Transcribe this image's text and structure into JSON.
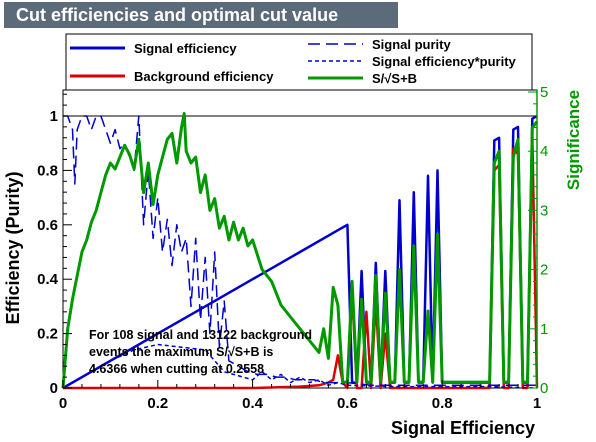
{
  "chart_data": {
    "type": "line",
    "title": "Cut efficiencies and optimal cut value",
    "xlabel": "Signal Efficiency",
    "ylabel": "Efficiency (Purity)",
    "y2label": "Significance",
    "xlim": [
      0,
      1
    ],
    "ylim": [
      0,
      1.1
    ],
    "y2lim": [
      0,
      5
    ],
    "xticks": [
      "0",
      "0.2",
      "0.4",
      "0.6",
      "0.8",
      "1"
    ],
    "yticks": [
      "0",
      "0.2",
      "0.4",
      "0.6",
      "0.8",
      "1"
    ],
    "y2ticks": [
      "0",
      "1",
      "2",
      "3",
      "4",
      "5"
    ],
    "legend_placement": "top",
    "annotation": [
      "For 108 signal and 13122 background",
      "events the maximum S/√S+B is",
      "4.6366 when cutting at 0.2558"
    ],
    "colors": {
      "signal": "#0000cc",
      "background": "#dd0000",
      "significance": "#009900",
      "axis": "#000000",
      "title_bg": "#5c6b7a"
    },
    "series": [
      {
        "name": "Signal efficiency",
        "axis": "left",
        "style": "solid",
        "x": [
          0.0,
          0.1,
          0.2,
          0.3,
          0.4,
          0.5,
          0.58,
          0.59,
          0.6,
          0.61,
          0.62,
          0.63,
          0.64,
          0.65,
          0.66,
          0.67,
          0.68,
          0.69,
          0.7,
          0.71,
          0.72,
          0.73,
          0.74,
          0.75,
          0.76,
          0.77,
          0.78,
          0.79,
          0.8,
          0.81,
          0.82,
          0.83,
          0.84,
          0.85,
          0.86,
          0.87,
          0.88,
          0.89,
          0.9,
          0.91,
          0.92,
          0.93,
          0.94,
          0.95,
          0.96,
          0.97,
          0.98,
          0.99,
          1.0
        ],
        "y": [
          0.0,
          0.1,
          0.2,
          0.3,
          0.4,
          0.5,
          0.58,
          0.59,
          0.6,
          0.02,
          0.02,
          0.43,
          0.02,
          0.02,
          0.46,
          0.02,
          0.43,
          0.02,
          0.02,
          0.69,
          0.02,
          0.02,
          0.72,
          0.02,
          0.02,
          0.78,
          0.02,
          0.8,
          0.02,
          0.02,
          0.02,
          0.02,
          0.02,
          0.02,
          0.02,
          0.02,
          0.02,
          0.02,
          0.02,
          0.91,
          0.92,
          0.02,
          0.02,
          0.95,
          0.96,
          0.02,
          0.02,
          0.99,
          1.0
        ]
      },
      {
        "name": "Background efficiency",
        "axis": "left",
        "style": "solid",
        "x": [
          0.0,
          0.3,
          0.4,
          0.5,
          0.54,
          0.56,
          0.57,
          0.58,
          0.59,
          0.6,
          0.61,
          0.62,
          0.63,
          0.64,
          0.65,
          0.66,
          0.67,
          0.68,
          0.69,
          0.7,
          0.72,
          0.74,
          0.76,
          0.78,
          0.8,
          0.85,
          0.9,
          0.91,
          0.92,
          0.93,
          0.94,
          0.95,
          0.96,
          0.97,
          0.98,
          0.99,
          1.0
        ],
        "y": [
          0.0,
          0.0,
          0.0,
          0.005,
          0.01,
          0.02,
          0.03,
          0.12,
          0.02,
          0.0,
          0.35,
          0.0,
          0.0,
          0.28,
          0.0,
          0.32,
          0.0,
          0.2,
          0.0,
          0.0,
          0.0,
          0.0,
          0.0,
          0.0,
          0.0,
          0.0,
          0.0,
          0.8,
          0.82,
          0.0,
          0.0,
          0.88,
          0.86,
          0.0,
          0.0,
          0.93,
          0.0
        ]
      },
      {
        "name": "Signal purity",
        "axis": "left",
        "style": "longdash",
        "x": [
          0.0,
          0.01,
          0.02,
          0.025,
          0.03,
          0.04,
          0.05,
          0.06,
          0.07,
          0.08,
          0.09,
          0.1,
          0.11,
          0.12,
          0.13,
          0.14,
          0.15,
          0.16,
          0.17,
          0.18,
          0.19,
          0.2,
          0.21,
          0.22,
          0.23,
          0.24,
          0.25,
          0.26,
          0.27,
          0.28,
          0.29,
          0.3,
          0.31,
          0.32,
          0.33,
          0.34,
          0.35,
          0.37,
          0.39,
          0.41,
          0.43,
          0.45,
          0.47,
          0.49,
          0.51,
          0.53,
          0.55,
          0.57,
          0.59,
          0.6,
          0.65,
          0.7,
          0.75,
          0.8,
          0.85,
          0.9,
          0.95,
          1.0
        ],
        "y": [
          1.0,
          1.0,
          0.95,
          0.75,
          0.95,
          1.0,
          1.0,
          0.95,
          1.0,
          1.0,
          0.95,
          0.9,
          0.95,
          0.88,
          0.9,
          0.85,
          0.8,
          1.0,
          0.6,
          0.8,
          0.55,
          0.7,
          0.5,
          0.62,
          0.45,
          0.6,
          0.5,
          0.55,
          0.3,
          0.55,
          0.25,
          0.48,
          0.2,
          0.5,
          0.15,
          0.32,
          0.1,
          0.08,
          0.06,
          0.05,
          0.05,
          0.04,
          0.04,
          0.03,
          0.03,
          0.03,
          0.02,
          0.02,
          0.02,
          0.02,
          0.01,
          0.01,
          0.01,
          0.01,
          0.01,
          0.01,
          0.01,
          0.01
        ]
      },
      {
        "name": "Signal efficiency*purity",
        "axis": "left",
        "style": "shortdash",
        "x": [
          0.0,
          0.05,
          0.1,
          0.15,
          0.2,
          0.25,
          0.3,
          0.32,
          0.34,
          0.36,
          0.38,
          0.4,
          0.42,
          0.44,
          0.46,
          0.48,
          0.5,
          0.52,
          0.54,
          0.56,
          0.58,
          0.6,
          0.7,
          0.8,
          0.9,
          1.0
        ],
        "y": [
          0.0,
          0.05,
          0.1,
          0.14,
          0.16,
          0.15,
          0.14,
          0.1,
          0.06,
          0.05,
          0.04,
          0.03,
          0.06,
          0.03,
          0.05,
          0.02,
          0.04,
          0.02,
          0.03,
          0.01,
          0.02,
          0.01,
          0.005,
          0.005,
          0.005,
          0.0
        ]
      },
      {
        "name": "S/√S+B",
        "axis": "right",
        "style": "solid",
        "x": [
          0.0,
          0.01,
          0.02,
          0.03,
          0.04,
          0.05,
          0.06,
          0.07,
          0.08,
          0.09,
          0.1,
          0.11,
          0.12,
          0.13,
          0.14,
          0.15,
          0.16,
          0.17,
          0.18,
          0.19,
          0.2,
          0.21,
          0.22,
          0.23,
          0.24,
          0.25,
          0.2558,
          0.26,
          0.27,
          0.28,
          0.29,
          0.3,
          0.31,
          0.32,
          0.33,
          0.34,
          0.35,
          0.36,
          0.37,
          0.38,
          0.39,
          0.4,
          0.42,
          0.44,
          0.46,
          0.48,
          0.5,
          0.52,
          0.54,
          0.55,
          0.56,
          0.57,
          0.58,
          0.59,
          0.6,
          0.61,
          0.62,
          0.63,
          0.64,
          0.65,
          0.66,
          0.67,
          0.68,
          0.69,
          0.7,
          0.71,
          0.72,
          0.73,
          0.74,
          0.75,
          0.76,
          0.77,
          0.78,
          0.79,
          0.8,
          0.82,
          0.85,
          0.88,
          0.9,
          0.91,
          0.92,
          0.93,
          0.94,
          0.95,
          0.96,
          0.97,
          0.98,
          0.99,
          1.0
        ],
        "y": [
          0.0,
          1.0,
          1.5,
          1.9,
          2.3,
          2.5,
          2.8,
          3.0,
          3.3,
          3.6,
          3.8,
          3.7,
          3.9,
          4.1,
          3.95,
          3.7,
          4.2,
          3.3,
          3.8,
          3.1,
          3.6,
          3.9,
          4.2,
          4.3,
          3.8,
          4.4,
          4.6366,
          4.0,
          3.8,
          3.9,
          3.3,
          3.6,
          3.0,
          3.2,
          2.7,
          2.9,
          2.5,
          2.8,
          2.5,
          2.7,
          2.4,
          2.5,
          2.0,
          1.8,
          1.4,
          1.2,
          1.0,
          0.8,
          0.6,
          1.0,
          0.5,
          1.7,
          1.4,
          0.1,
          0.1,
          1.8,
          0.1,
          1.5,
          0.1,
          0.1,
          1.9,
          0.1,
          1.6,
          0.1,
          0.1,
          2.0,
          0.1,
          0.1,
          2.4,
          0.1,
          0.1,
          1.3,
          0.1,
          2.6,
          0.1,
          0.1,
          0.1,
          0.1,
          0.1,
          3.8,
          4.0,
          0.1,
          0.1,
          3.9,
          4.2,
          0.1,
          0.1,
          4.4,
          4.5
        ]
      }
    ]
  }
}
